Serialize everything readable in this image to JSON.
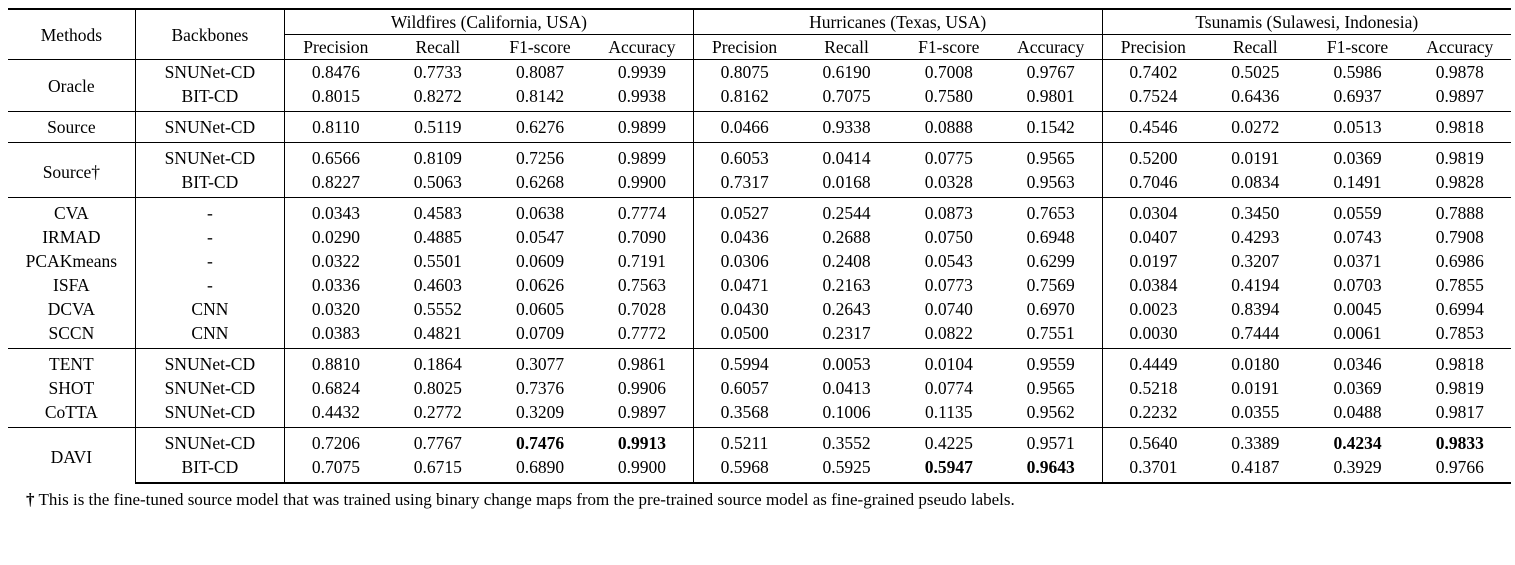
{
  "table": {
    "header": {
      "methods": "Methods",
      "backbones": "Backbones",
      "groups": [
        {
          "title": "Wildfires (California, USA)",
          "metrics": [
            "Precision",
            "Recall",
            "F1-score",
            "Accuracy"
          ]
        },
        {
          "title": "Hurricanes (Texas, USA)",
          "metrics": [
            "Precision",
            "Recall",
            "F1-score",
            "Accuracy"
          ]
        },
        {
          "title": "Tsunamis (Sulawesi, Indonesia)",
          "metrics": [
            "Precision",
            "Recall",
            "F1-score",
            "Accuracy"
          ]
        }
      ]
    },
    "sections": [
      {
        "groups": [
          {
            "method": "Oracle",
            "rows": [
              {
                "backbone": "SNUNet-CD",
                "values": [
                  "0.8476",
                  "0.7733",
                  "0.8087",
                  "0.9939",
                  "0.8075",
                  "0.6190",
                  "0.7008",
                  "0.9767",
                  "0.7402",
                  "0.5025",
                  "0.5986",
                  "0.9878"
                ],
                "bold": []
              },
              {
                "backbone": "BIT-CD",
                "values": [
                  "0.8015",
                  "0.8272",
                  "0.8142",
                  "0.9938",
                  "0.8162",
                  "0.7075",
                  "0.7580",
                  "0.9801",
                  "0.7524",
                  "0.6436",
                  "0.6937",
                  "0.9897"
                ],
                "bold": []
              }
            ]
          }
        ]
      },
      {
        "groups": [
          {
            "method": "Source",
            "rows": [
              {
                "backbone": "SNUNet-CD",
                "values": [
                  "0.8110",
                  "0.5119",
                  "0.6276",
                  "0.9899",
                  "0.0466",
                  "0.9338",
                  "0.0888",
                  "0.1542",
                  "0.4546",
                  "0.0272",
                  "0.0513",
                  "0.9818"
                ],
                "bold": []
              }
            ]
          }
        ]
      },
      {
        "groups": [
          {
            "method": "Source†",
            "rows": [
              {
                "backbone": "SNUNet-CD",
                "values": [
                  "0.6566",
                  "0.8109",
                  "0.7256",
                  "0.9899",
                  "0.6053",
                  "0.0414",
                  "0.0775",
                  "0.9565",
                  "0.5200",
                  "0.0191",
                  "0.0369",
                  "0.9819"
                ],
                "bold": []
              },
              {
                "backbone": "BIT-CD",
                "values": [
                  "0.8227",
                  "0.5063",
                  "0.6268",
                  "0.9900",
                  "0.7317",
                  "0.0168",
                  "0.0328",
                  "0.9563",
                  "0.7046",
                  "0.0834",
                  "0.1491",
                  "0.9828"
                ],
                "bold": []
              }
            ]
          }
        ]
      },
      {
        "groups": [
          {
            "method": "CVA",
            "rows": [
              {
                "backbone": "-",
                "values": [
                  "0.0343",
                  "0.4583",
                  "0.0638",
                  "0.7774",
                  "0.0527",
                  "0.2544",
                  "0.0873",
                  "0.7653",
                  "0.0304",
                  "0.3450",
                  "0.0559",
                  "0.7888"
                ],
                "bold": []
              }
            ]
          },
          {
            "method": "IRMAD",
            "rows": [
              {
                "backbone": "-",
                "values": [
                  "0.0290",
                  "0.4885",
                  "0.0547",
                  "0.7090",
                  "0.0436",
                  "0.2688",
                  "0.0750",
                  "0.6948",
                  "0.0407",
                  "0.4293",
                  "0.0743",
                  "0.7908"
                ],
                "bold": []
              }
            ]
          },
          {
            "method": "PCAKmeans",
            "rows": [
              {
                "backbone": "-",
                "values": [
                  "0.0322",
                  "0.5501",
                  "0.0609",
                  "0.7191",
                  "0.0306",
                  "0.2408",
                  "0.0543",
                  "0.6299",
                  "0.0197",
                  "0.3207",
                  "0.0371",
                  "0.6986"
                ],
                "bold": []
              }
            ]
          },
          {
            "method": "ISFA",
            "rows": [
              {
                "backbone": "-",
                "values": [
                  "0.0336",
                  "0.4603",
                  "0.0626",
                  "0.7563",
                  "0.0471",
                  "0.2163",
                  "0.0773",
                  "0.7569",
                  "0.0384",
                  "0.4194",
                  "0.0703",
                  "0.7855"
                ],
                "bold": []
              }
            ]
          },
          {
            "method": "DCVA",
            "rows": [
              {
                "backbone": "CNN",
                "values": [
                  "0.0320",
                  "0.5552",
                  "0.0605",
                  "0.7028",
                  "0.0430",
                  "0.2643",
                  "0.0740",
                  "0.6970",
                  "0.0023",
                  "0.8394",
                  "0.0045",
                  "0.6994"
                ],
                "bold": []
              }
            ]
          },
          {
            "method": "SCCN",
            "rows": [
              {
                "backbone": "CNN",
                "values": [
                  "0.0383",
                  "0.4821",
                  "0.0709",
                  "0.7772",
                  "0.0500",
                  "0.2317",
                  "0.0822",
                  "0.7551",
                  "0.0030",
                  "0.7444",
                  "0.0061",
                  "0.7853"
                ],
                "bold": []
              }
            ]
          }
        ]
      },
      {
        "groups": [
          {
            "method": "TENT",
            "rows": [
              {
                "backbone": "SNUNet-CD",
                "values": [
                  "0.8810",
                  "0.1864",
                  "0.3077",
                  "0.9861",
                  "0.5994",
                  "0.0053",
                  "0.0104",
                  "0.9559",
                  "0.4449",
                  "0.0180",
                  "0.0346",
                  "0.9818"
                ],
                "bold": []
              }
            ]
          },
          {
            "method": "SHOT",
            "rows": [
              {
                "backbone": "SNUNet-CD",
                "values": [
                  "0.6824",
                  "0.8025",
                  "0.7376",
                  "0.9906",
                  "0.6057",
                  "0.0413",
                  "0.0774",
                  "0.9565",
                  "0.5218",
                  "0.0191",
                  "0.0369",
                  "0.9819"
                ],
                "bold": []
              }
            ]
          },
          {
            "method": "CoTTA",
            "rows": [
              {
                "backbone": "SNUNet-CD",
                "values": [
                  "0.4432",
                  "0.2772",
                  "0.3209",
                  "0.9897",
                  "0.3568",
                  "0.1006",
                  "0.1135",
                  "0.9562",
                  "0.2232",
                  "0.0355",
                  "0.0488",
                  "0.9817"
                ],
                "bold": []
              }
            ]
          }
        ]
      },
      {
        "groups": [
          {
            "method": "DAVI",
            "rows": [
              {
                "backbone": "SNUNet-CD",
                "values": [
                  "0.7206",
                  "0.7767",
                  "0.7476",
                  "0.9913",
                  "0.5211",
                  "0.3552",
                  "0.4225",
                  "0.9571",
                  "0.5640",
                  "0.3389",
                  "0.4234",
                  "0.9833"
                ],
                "bold": [
                  2,
                  3,
                  10,
                  11
                ]
              },
              {
                "backbone": "BIT-CD",
                "values": [
                  "0.7075",
                  "0.6715",
                  "0.6890",
                  "0.9900",
                  "0.5968",
                  "0.5925",
                  "0.5947",
                  "0.9643",
                  "0.3701",
                  "0.4187",
                  "0.3929",
                  "0.9766"
                ],
                "bold": [
                  6,
                  7
                ]
              }
            ]
          }
        ]
      }
    ],
    "footnote": {
      "symbol": "†",
      "text": "This is the fine-tuned source model that was trained using binary change maps from the pre-trained source model as fine-grained pseudo labels."
    }
  }
}
